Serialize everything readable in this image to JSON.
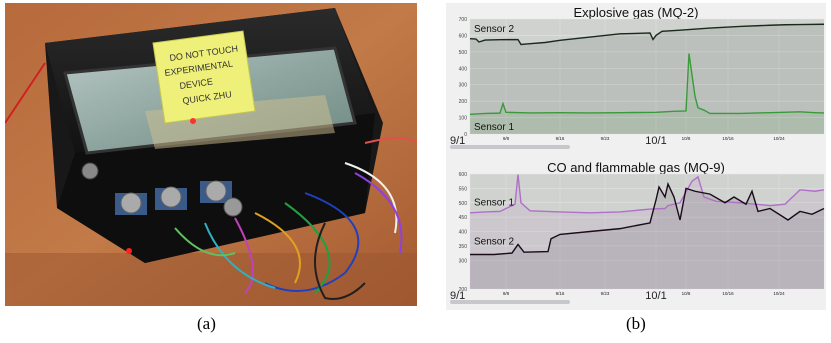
{
  "figure": {
    "caption_a": "(a)",
    "caption_b": "(b)",
    "photo": {
      "note_lines": [
        "DO NOT TOUCH",
        "EXPERIMENTAL",
        "DEVICE",
        "QUICK ZHU"
      ]
    }
  },
  "chart_data": [
    {
      "type": "line",
      "title": "Explosive gas (MQ-2)",
      "xlabel": "",
      "ylabel": "",
      "ylim": [
        0,
        700
      ],
      "yticks": [
        0,
        100,
        200,
        300,
        400,
        500,
        600,
        700
      ],
      "xticks": [
        {
          "label": "9/1",
          "major": true
        },
        {
          "label": "9/8",
          "major": false
        },
        {
          "label": "9/16",
          "major": false
        },
        {
          "label": "9/23",
          "major": false
        },
        {
          "label": "10/1",
          "major": true
        },
        {
          "label": "10/8",
          "major": false
        },
        {
          "label": "10/16",
          "major": false
        },
        {
          "label": "10/24",
          "major": false
        }
      ],
      "series": [
        {
          "name": "Sensor 2",
          "color": "#1a2a1a",
          "points": [
            [
              0,
              580
            ],
            [
              2,
              578
            ],
            [
              3,
              560
            ],
            [
              5,
              572
            ],
            [
              10,
              574
            ],
            [
              16,
              575
            ],
            [
              17,
              545
            ],
            [
              19,
              548
            ],
            [
              25,
              557
            ],
            [
              30,
              570
            ],
            [
              40,
              590
            ],
            [
              50,
              610
            ],
            [
              55,
              612
            ],
            [
              60,
              615
            ],
            [
              61,
              575
            ],
            [
              62,
              600
            ],
            [
              64,
              625
            ],
            [
              70,
              632
            ],
            [
              80,
              645
            ],
            [
              90,
              655
            ],
            [
              100,
              662
            ],
            [
              105,
              665
            ],
            [
              110,
              666
            ],
            [
              118,
              668
            ]
          ]
        },
        {
          "name": "Sensor 1",
          "color": "#3a9a3a",
          "points": [
            [
              0,
              120
            ],
            [
              5,
              125
            ],
            [
              10,
              127
            ],
            [
              11,
              185
            ],
            [
              12,
              132
            ],
            [
              20,
              128
            ],
            [
              30,
              130
            ],
            [
              40,
              128
            ],
            [
              50,
              130
            ],
            [
              62,
              132
            ],
            [
              68,
              138
            ],
            [
              72,
              140
            ],
            [
              73,
              490
            ],
            [
              74,
              360
            ],
            [
              75,
              230
            ],
            [
              76,
              160
            ],
            [
              78,
              145
            ],
            [
              80,
              125
            ],
            [
              90,
              125
            ],
            [
              100,
              130
            ],
            [
              110,
              135
            ],
            [
              115,
              130
            ],
            [
              118,
              128
            ]
          ]
        }
      ]
    },
    {
      "type": "line",
      "title": "CO and flammable gas (MQ-9)",
      "xlabel": "",
      "ylabel": "",
      "ylim": [
        200,
        600
      ],
      "yticks": [
        200,
        300,
        350,
        400,
        450,
        500,
        550,
        600
      ],
      "xticks": [
        {
          "label": "9/1",
          "major": true
        },
        {
          "label": "9/8",
          "major": false
        },
        {
          "label": "9/16",
          "major": false
        },
        {
          "label": "9/23",
          "major": false
        },
        {
          "label": "10/1",
          "major": true
        },
        {
          "label": "10/8",
          "major": false
        },
        {
          "label": "10/16",
          "major": false
        },
        {
          "label": "10/24",
          "major": false
        }
      ],
      "series": [
        {
          "name": "Sensor 1",
          "color": "#b070c8",
          "points": [
            [
              0,
              465
            ],
            [
              5,
              468
            ],
            [
              10,
              470
            ],
            [
              15,
              495
            ],
            [
              16,
              598
            ],
            [
              17,
              500
            ],
            [
              20,
              472
            ],
            [
              30,
              468
            ],
            [
              40,
              465
            ],
            [
              50,
              468
            ],
            [
              60,
              478
            ],
            [
              65,
              480
            ],
            [
              66,
              490
            ],
            [
              70,
              500
            ],
            [
              74,
              575
            ],
            [
              76,
              590
            ],
            [
              78,
              520
            ],
            [
              82,
              505
            ],
            [
              90,
              500
            ],
            [
              100,
              490
            ],
            [
              105,
              495
            ],
            [
              110,
              545
            ],
            [
              115,
              540
            ],
            [
              118,
              545
            ]
          ]
        },
        {
          "name": "Sensor 2",
          "color": "#1a0a1a",
          "points": [
            [
              0,
              320
            ],
            [
              8,
              320
            ],
            [
              14,
              325
            ],
            [
              16,
              355
            ],
            [
              18,
              328
            ],
            [
              26,
              330
            ],
            [
              27,
              375
            ],
            [
              30,
              390
            ],
            [
              40,
              400
            ],
            [
              50,
              410
            ],
            [
              60,
              430
            ],
            [
              62,
              510
            ],
            [
              63,
              555
            ],
            [
              65,
              520
            ],
            [
              66,
              565
            ],
            [
              68,
              520
            ],
            [
              70,
              440
            ],
            [
              72,
              550
            ],
            [
              75,
              540
            ],
            [
              80,
              530
            ],
            [
              85,
              500
            ],
            [
              88,
              520
            ],
            [
              92,
              495
            ],
            [
              94,
              540
            ],
            [
              96,
              470
            ],
            [
              100,
              480
            ],
            [
              106,
              440
            ],
            [
              110,
              470
            ],
            [
              114,
              460
            ],
            [
              118,
              480
            ]
          ]
        }
      ]
    }
  ]
}
